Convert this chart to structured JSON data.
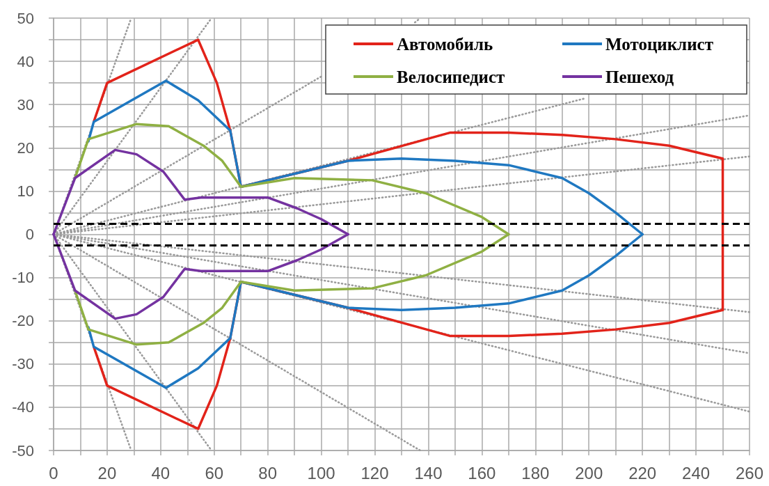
{
  "chart_data": {
    "type": "line",
    "xlim": [
      0,
      260
    ],
    "xticks": [
      0,
      {
        "value": 10,
        "label": null
      },
      20,
      {
        "value": 30,
        "label": null
      },
      40,
      {
        "value": 50,
        "label": null
      },
      60,
      {
        "value": 70,
        "label": null
      },
      80,
      {
        "value": 90,
        "label": null
      },
      100,
      {
        "value": 110,
        "label": null
      },
      120,
      {
        "value": 130,
        "label": null
      },
      140,
      {
        "value": 150,
        "label": null
      },
      160,
      {
        "value": 170,
        "label": null
      },
      180,
      {
        "value": 190,
        "label": null
      },
      200,
      {
        "value": 210,
        "label": null
      },
      220,
      {
        "value": 230,
        "label": null
      },
      240,
      {
        "value": 250,
        "label": null
      },
      260
    ],
    "ylim": [
      -50,
      50
    ],
    "yticks": [
      -50,
      {
        "value": -45,
        "label": null
      },
      -40,
      {
        "value": -35,
        "label": null
      },
      -30,
      {
        "value": -25,
        "label": null
      },
      -20,
      {
        "value": -15,
        "label": null
      },
      -10,
      {
        "value": -5,
        "label": null
      },
      0,
      {
        "value": 5,
        "label": null
      },
      10,
      {
        "value": 15,
        "label": null
      },
      20,
      {
        "value": 25,
        "label": null
      },
      30,
      {
        "value": 35,
        "label": null
      },
      40,
      {
        "value": 45,
        "label": null
      },
      50
    ],
    "grid": true,
    "legend": "top right",
    "marker": "none",
    "line_style": "solid",
    "series": [
      {
        "name": "Автомобиль",
        "color": "#e2231a",
        "x": [
          15,
          20,
          54,
          61,
          66,
          70,
          110,
          148,
          170,
          190,
          210,
          230,
          250,
          250
        ],
        "values": [
          26,
          35,
          45,
          35,
          24,
          11,
          17,
          23.5,
          23.5,
          23,
          22,
          20.5,
          17.5,
          -17.5
        ]
      },
      {
        "color": "#e2231a",
        "x": [
          15,
          20,
          54,
          61,
          66,
          70,
          110,
          148,
          170,
          190,
          210,
          230,
          250
        ],
        "values": [
          -26,
          -35,
          -45,
          -35,
          -24,
          -11,
          -17,
          -23.5,
          -23.5,
          -23,
          -22,
          -20.5,
          -17.5
        ]
      },
      {
        "name": "Мотоциклист",
        "color": "#1f78c1",
        "x": [
          13,
          15,
          42,
          54,
          66,
          70,
          110,
          130,
          150,
          170,
          190,
          200,
          210,
          220
        ],
        "values": [
          21.5,
          26,
          35.5,
          31,
          24,
          11,
          17,
          17.5,
          17,
          16,
          13,
          9.5,
          5,
          0
        ]
      },
      {
        "color": "#1f78c1",
        "x": [
          13,
          15,
          42,
          54,
          66,
          70,
          110,
          130,
          150,
          170,
          190,
          200,
          210,
          220
        ],
        "values": [
          -21.5,
          -26,
          -35.5,
          -31,
          -24,
          -11,
          -17,
          -17.5,
          -17,
          -16,
          -13,
          -9.5,
          -5,
          0
        ]
      },
      {
        "name": "Велосипедист",
        "color": "#8fb043",
        "x": [
          8,
          13,
          31,
          43,
          56,
          63,
          70,
          90,
          119,
          139,
          160,
          170
        ],
        "values": [
          13,
          22,
          25.5,
          25,
          20.5,
          17,
          11,
          13,
          12.5,
          9.5,
          4,
          0
        ]
      },
      {
        "color": "#8fb043",
        "x": [
          8,
          13,
          31,
          43,
          56,
          63,
          70,
          90,
          119,
          139,
          160,
          170
        ],
        "values": [
          -13,
          -22,
          -25.5,
          -25,
          -20.5,
          -17,
          -11,
          -13,
          -12.5,
          -9.5,
          -4,
          0
        ]
      },
      {
        "name": "Пешеход",
        "color": "#7432a0",
        "x": [
          0,
          8,
          23,
          31,
          41,
          49,
          55,
          62,
          80,
          91,
          100,
          110
        ],
        "values": [
          0,
          13,
          19.5,
          18.5,
          14.5,
          8,
          8.5,
          8.5,
          8.5,
          6,
          3.5,
          0
        ]
      },
      {
        "color": "#7432a0",
        "x": [
          0,
          8,
          23,
          31,
          41,
          49,
          55,
          62,
          80,
          91,
          100,
          110
        ],
        "values": [
          0,
          -13,
          -19.5,
          -18.5,
          -14.5,
          -8,
          -8.5,
          -8.5,
          -8.5,
          -6,
          -3.5,
          0
        ]
      },
      {
        "color": "#9b9b9b",
        "line_style": "dotted",
        "x": [
          0,
          29
        ],
        "values": [
          0,
          50
        ]
      },
      {
        "color": "#9b9b9b",
        "line_style": "dotted",
        "x": [
          0,
          59
        ],
        "values": [
          0,
          50
        ]
      },
      {
        "color": "#9b9b9b",
        "line_style": "dotted",
        "x": [
          0,
          100,
          118,
          135,
          137
        ],
        "values": [
          0,
          36.5,
          null,
          49,
          50
        ]
      },
      {
        "color": "#9b9b9b",
        "line_style": "dotted",
        "x": [
          0,
          199
        ],
        "values": [
          0,
          31.5
        ]
      },
      {
        "color": "#9b9b9b",
        "line_style": "dotted",
        "x": [
          0,
          260
        ],
        "values": [
          0,
          27.5
        ]
      },
      {
        "color": "#9b9b9b",
        "line_style": "dotted",
        "x": [
          0,
          260
        ],
        "values": [
          0,
          18
        ]
      },
      {
        "color": "#9b9b9b",
        "line_style": "dotted",
        "x": [
          0,
          29
        ],
        "values": [
          0,
          -50
        ]
      },
      {
        "color": "#9b9b9b",
        "line_style": "dotted",
        "x": [
          0,
          59
        ],
        "values": [
          0,
          -50
        ]
      },
      {
        "color": "#9b9b9b",
        "line_style": "dotted",
        "x": [
          0,
          137
        ],
        "values": [
          0,
          -50
        ]
      },
      {
        "color": "#9b9b9b",
        "line_style": "dotted",
        "x": [
          0,
          260
        ],
        "values": [
          0,
          -41
        ]
      },
      {
        "color": "#9b9b9b",
        "line_style": "dotted",
        "x": [
          0,
          260
        ],
        "values": [
          0,
          -27.5
        ]
      },
      {
        "color": "#9b9b9b",
        "line_style": "dotted",
        "x": [
          0,
          260
        ],
        "values": [
          0,
          -18
        ]
      }
    ],
    "ref_lines": [
      {
        "axis": "y",
        "value": 2.5,
        "color": "#000000",
        "line_style": "dashed"
      },
      {
        "axis": "y",
        "value": -2.5,
        "color": "#000000",
        "line_style": "dashed"
      }
    ]
  }
}
